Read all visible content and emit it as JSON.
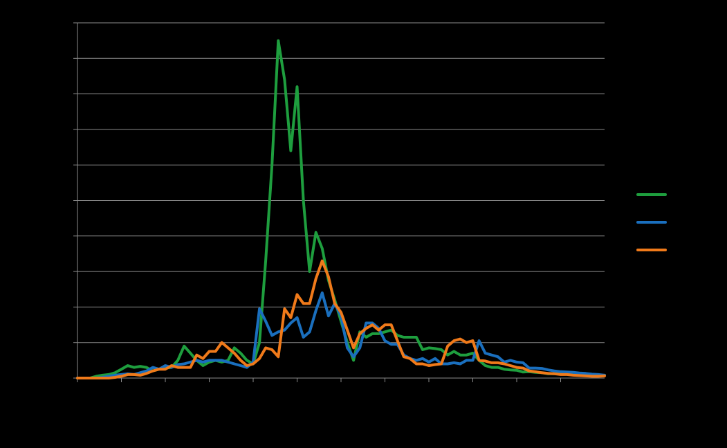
{
  "chart_data": {
    "type": "line",
    "title": "",
    "xlabel": "",
    "ylabel": "",
    "x_range": [
      0,
      84
    ],
    "ylim": [
      0,
      100
    ],
    "y_gridlines": [
      0,
      10,
      20,
      30,
      40,
      50,
      60,
      70,
      80,
      90,
      100
    ],
    "x_ticks": [
      0,
      7,
      14,
      21,
      28,
      35,
      42,
      49,
      56,
      63,
      70,
      77
    ],
    "grid": true,
    "legend_position": "right",
    "colors": {
      "background": "#000000",
      "gridline": "#8c8c8c",
      "axis": "#8c8c8c"
    },
    "series": [
      {
        "color": "#1e9e3e",
        "values": [
          0,
          0,
          0,
          0.5,
          0.8,
          1.0,
          1.5,
          2.5,
          3.5,
          3.0,
          3.3,
          3.0,
          2.0,
          2.5,
          2.8,
          3.0,
          5.0,
          9.0,
          7.0,
          5.0,
          3.5,
          4.5,
          5.0,
          4.5,
          5.0,
          8.5,
          7.0,
          5.0,
          4.0,
          10.0,
          33.0,
          60.0,
          95.0,
          84.0,
          64.0,
          82.0,
          50.0,
          30.0,
          41.0,
          36.5,
          27.5,
          22.0,
          16.0,
          10.0,
          5.0,
          13.0,
          11.5,
          12.5,
          12.5,
          13.0,
          13.5,
          12.0,
          11.5,
          11.5,
          11.5,
          8.0,
          8.5,
          8.3,
          8.0,
          6.5,
          7.5,
          6.5,
          6.5,
          7.0,
          5.0,
          3.5,
          3.0,
          3.0,
          2.5,
          2.3,
          2.2,
          1.7,
          1.8,
          1.6,
          1.5,
          1.2,
          1.2,
          1.3,
          1.1,
          1.0,
          0.9,
          0.8,
          0.7,
          0.7,
          0.8
        ]
      },
      {
        "color": "#1a6fbe",
        "values": [
          0,
          0,
          0,
          0,
          0.2,
          0.5,
          0.8,
          1.0,
          1.2,
          1.0,
          1.5,
          2.0,
          3.0,
          2.5,
          3.5,
          3.0,
          3.8,
          4.0,
          4.5,
          5.0,
          4.5,
          5.0,
          5.0,
          5.0,
          4.5,
          4.0,
          3.5,
          3.0,
          4.5,
          19.5,
          16.0,
          12.0,
          13.0,
          13.5,
          15.5,
          17.0,
          11.5,
          13.0,
          19.0,
          24.0,
          17.5,
          21.0,
          17.5,
          8.5,
          6.0,
          8.5,
          15.5,
          15.5,
          14.0,
          10.5,
          9.5,
          9.5,
          6.5,
          5.5,
          5.0,
          5.5,
          4.5,
          5.5,
          4.0,
          4.0,
          4.3,
          4.0,
          5.0,
          5.0,
          10.5,
          7.0,
          6.5,
          6.0,
          4.5,
          5.0,
          4.5,
          4.3,
          2.8,
          2.8,
          2.7,
          2.3,
          2.0,
          1.8,
          1.7,
          1.6,
          1.4,
          1.3,
          1.1,
          1.0,
          0.8
        ]
      },
      {
        "color": "#f07a1a",
        "values": [
          0,
          0,
          0,
          0,
          0,
          0,
          0.2,
          0.5,
          1.0,
          1.0,
          0.8,
          1.3,
          2.0,
          2.5,
          2.5,
          3.5,
          3.0,
          3.0,
          3.0,
          6.5,
          5.5,
          7.5,
          7.5,
          10.0,
          8.5,
          7.0,
          5.0,
          3.5,
          4.0,
          5.5,
          8.5,
          8.0,
          6.0,
          19.5,
          17.0,
          23.5,
          21.0,
          21.0,
          28.0,
          33.0,
          28.5,
          21.0,
          18.5,
          13.5,
          8.5,
          12.5,
          14.0,
          15.0,
          13.5,
          15.0,
          15.0,
          10.5,
          6.0,
          5.5,
          4.0,
          4.0,
          3.5,
          3.8,
          4.0,
          9.0,
          10.5,
          11.0,
          10.0,
          10.5,
          5.0,
          4.8,
          4.3,
          4.3,
          4.0,
          3.5,
          3.0,
          2.8,
          2.0,
          1.8,
          1.5,
          1.3,
          1.2,
          1.0,
          1.0,
          0.8,
          0.7,
          0.6,
          0.5,
          0.5,
          0.6
        ]
      }
    ]
  }
}
